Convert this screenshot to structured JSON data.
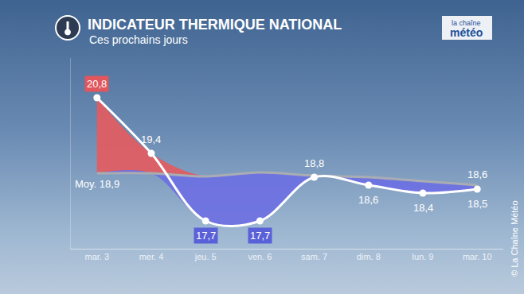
{
  "chart_data": {
    "type": "line",
    "title": "INDICATEUR THERMIQUE NATIONAL",
    "subtitle": "Ces prochains jours",
    "logo": [
      "la chaîne",
      "météo"
    ],
    "source": "© La Chaîne Météo",
    "categories": [
      "mar. 3",
      "mer. 4",
      "jeu. 5",
      "ven. 6",
      "sam. 7",
      "dim. 8",
      "lun. 9",
      "mar. 10"
    ],
    "values": [
      20.8,
      19.4,
      17.7,
      17.7,
      18.8,
      18.6,
      18.4,
      18.5
    ],
    "value_labels": [
      "20,8",
      "19,4",
      "17,7",
      "17,7",
      "18,8",
      "18,6",
      "18,4",
      "18,5"
    ],
    "color": "#ffffff",
    "average": {
      "label": "Moy.",
      "values": [
        18.9,
        18.9,
        18.82,
        18.92,
        18.84,
        18.8,
        18.7,
        18.6
      ],
      "value_labels": [
        "18,9",
        null,
        null,
        null,
        null,
        null,
        null,
        "18,6"
      ],
      "color": "#a9adb3"
    },
    "ylim": [
      17.0,
      21.8
    ],
    "grid": false,
    "tick_labels": "x",
    "data_labels": true
  }
}
